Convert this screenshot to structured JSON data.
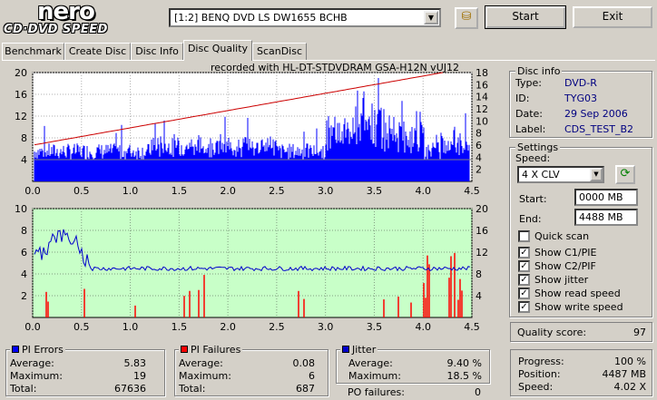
{
  "header": {
    "logo_top": "nero",
    "logo_bottom": "CD·DVD SPEED",
    "drive": "[1:2]   BENQ DVD LS DW1655 BCHB",
    "start_label": "Start",
    "exit_label": "Exit"
  },
  "tabs": [
    {
      "label": "Benchmark"
    },
    {
      "label": "Create Disc"
    },
    {
      "label": "Disc Info"
    },
    {
      "label": "Disc Quality"
    },
    {
      "label": "ScanDisc"
    }
  ],
  "recorded_with": "recorded with HL-DT-STDVDRAM GSA-H12N  vUJ12",
  "disc_info": {
    "title": "Disc info",
    "type_label": "Type:",
    "type": "DVD-R",
    "id_label": "ID:",
    "id": "TYG03",
    "date_label": "Date:",
    "date": "29 Sep 2006",
    "label_label": "Label:",
    "label": "CDS_TEST_B2"
  },
  "settings": {
    "title": "Settings",
    "speed_label": "Speed:",
    "speed": "4 X CLV",
    "start_label": "Start:",
    "start": "0000 MB",
    "end_label": "End:",
    "end": "4488 MB",
    "quick_scan": "Quick scan",
    "show_c1": "Show C1/PIE",
    "show_c2": "Show C2/PIF",
    "show_jitter": "Show jitter",
    "show_read": "Show read speed",
    "show_write": "Show write speed"
  },
  "quality": {
    "label": "Quality score:",
    "value": "97"
  },
  "progress": {
    "progress_label": "Progress:",
    "progress": "100 %",
    "position_label": "Position:",
    "position": "4487 MB",
    "speed_label": "Speed:",
    "speed": "4.02 X"
  },
  "pi_errors": {
    "title": "PI Errors",
    "avg_label": "Average:",
    "avg": "5.83",
    "max_label": "Maximum:",
    "max": "19",
    "total_label": "Total:",
    "total": "67636"
  },
  "pi_failures": {
    "title": "PI Failures",
    "avg_label": "Average:",
    "avg": "0.08",
    "max_label": "Maximum:",
    "max": "6",
    "total_label": "Total:",
    "total": "687"
  },
  "jitter": {
    "title": "Jitter",
    "avg_label": "Average:",
    "avg": "9.40 %",
    "max_label": "Maximum:",
    "max": "18.5 %",
    "po_label": "PO failures:",
    "po": "0"
  },
  "colors": {
    "pi_errors": "#0000ff",
    "pi_failures": "#ff0000",
    "jitter": "#0000cc",
    "speed": "#cc0000",
    "plot_bg_top": "#ffffff",
    "plot_bg_bottom": "#c8ffc8"
  },
  "chart_data": [
    {
      "type": "area",
      "series": [
        {
          "values_approx": "PI errors per position, mostly 4-8, peaks to ~19 near 3.5 GB"
        },
        {
          "values_approx": "read speed rising from ~6 to ~18"
        }
      ],
      "x_ticks": [
        "0.0",
        "0.5",
        "1.0",
        "1.5",
        "2.0",
        "2.5",
        "3.0",
        "3.5",
        "4.0",
        "4.5"
      ],
      "y_left_ticks": [
        "4",
        "8",
        "12",
        "16",
        "20"
      ],
      "y_right_ticks": [
        "2",
        "4",
        "6",
        "8",
        "10",
        "12",
        "14",
        "16",
        "18"
      ],
      "xlim": [
        0,
        4.5
      ],
      "ylim_left": [
        0,
        20
      ],
      "ylim_right": [
        0,
        18
      ]
    },
    {
      "type": "bar",
      "x_ticks": [
        "0.0",
        "0.5",
        "1.0",
        "1.5",
        "2.0",
        "2.5",
        "3.0",
        "3.5",
        "4.0",
        "4.5"
      ],
      "y_left_ticks": [
        "2",
        "4",
        "6",
        "8",
        "10"
      ],
      "y_right_ticks": [
        "4",
        "8",
        "12",
        "16",
        "20"
      ],
      "xlim": [
        0,
        4.5
      ],
      "ylim_left": [
        0,
        10
      ],
      "ylim_right": [
        0,
        20
      ]
    }
  ]
}
